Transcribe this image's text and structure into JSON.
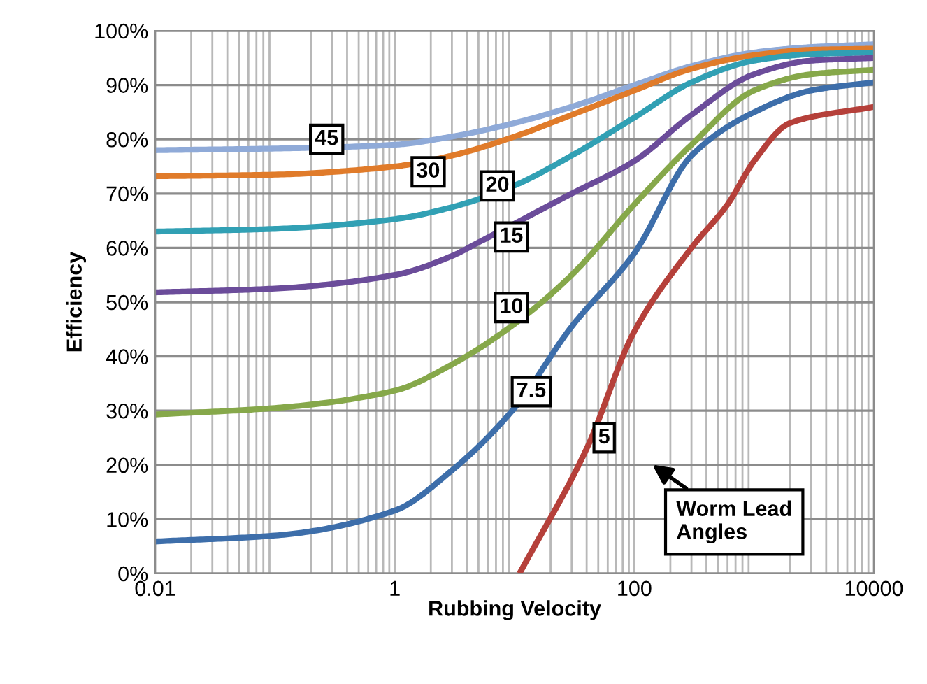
{
  "chart_data": {
    "type": "line",
    "xlabel": "Rubbing Velocity",
    "ylabel": "Efficiency",
    "log": "x",
    "grid": true,
    "marker": "none",
    "line_style": "solid",
    "xlim": [
      0.01,
      10000
    ],
    "xticks": [
      0.01,
      1,
      100,
      10000
    ],
    "ylim": [
      0,
      100
    ],
    "yticks": [
      {
        "value": 0,
        "label": "0%"
      },
      {
        "value": 10,
        "label": "10%"
      },
      {
        "value": 20,
        "label": "20%"
      },
      {
        "value": 30,
        "label": "30%"
      },
      {
        "value": 40,
        "label": "40%"
      },
      {
        "value": 50,
        "label": "50%"
      },
      {
        "value": 60,
        "label": "60%"
      },
      {
        "value": 70,
        "label": "70%"
      },
      {
        "value": 80,
        "label": "80%"
      },
      {
        "value": 90,
        "label": "90%"
      },
      {
        "value": 100,
        "label": "100%"
      }
    ],
    "x": [
      0.01,
      0.1,
      1,
      3,
      10,
      30,
      100,
      300,
      1000,
      3000,
      10000
    ],
    "series": [
      {
        "color": "#8faad8",
        "values": [
          78,
          78.3,
          79,
          80.5,
          83,
          86,
          90,
          93.5,
          96,
          97,
          97.5
        ]
      },
      {
        "color": "#e07b2a",
        "values": [
          73.2,
          73.5,
          75,
          77,
          80.5,
          84.5,
          89,
          93,
          95.5,
          96.5,
          96.7
        ]
      },
      {
        "color": "#31a0b4",
        "values": [
          63,
          63.5,
          65.3,
          67.5,
          71.5,
          77,
          84,
          90.5,
          94.5,
          95.7,
          96
        ]
      },
      {
        "color": "#6b4c9a",
        "x": [
          0.01,
          0.1,
          1,
          3,
          5,
          30,
          100,
          300,
          1000,
          3000,
          10000
        ],
        "values": [
          51.8,
          52.5,
          55,
          58.5,
          61,
          70,
          76,
          84.5,
          92,
          94.5,
          95
        ]
      },
      {
        "color": "#86a84a",
        "values": [
          29.3,
          30.5,
          33.7,
          38.5,
          46,
          55,
          68,
          79,
          89,
          92,
          92.8
        ]
      },
      {
        "color": "#3d6eaa",
        "values": [
          5.9,
          7,
          11.6,
          19,
          30.5,
          45.5,
          59,
          77,
          85,
          89,
          90.5
        ]
      },
      {
        "color": "#b5403a",
        "x": [
          11,
          40,
          100,
          300,
          600,
          1000,
          2000,
          10000
        ],
        "values": [
          0,
          23,
          44.6,
          60,
          68,
          76,
          83,
          86
        ]
      }
    ],
    "annotations": [
      {
        "text": "45",
        "x": 0.27,
        "y": 80
      },
      {
        "text": "30",
        "x": 1.9,
        "y": 74
      },
      {
        "text": "20",
        "x": 7.2,
        "y": 71.4
      },
      {
        "text": "15",
        "x": 9.4,
        "y": 62
      },
      {
        "text": "10",
        "x": 9.4,
        "y": 49
      },
      {
        "text": "7.5",
        "x": 13.8,
        "y": 33.5
      },
      {
        "text": "5",
        "x": 56,
        "y": 25
      },
      "Worm Lead\nAngles"
    ]
  }
}
